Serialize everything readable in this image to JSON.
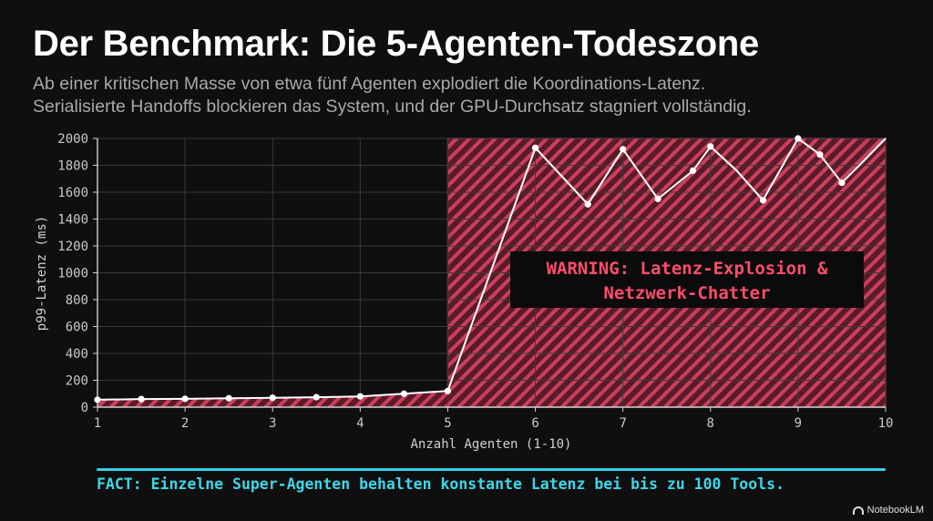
{
  "header": {
    "title": "Der Benchmark: Die 5-Agenten-Todeszone",
    "subtitle_line1": "Ab einer kritischen Masse von etwa fünf Agenten explodiert die Koordinations-Latenz.",
    "subtitle_line2": "Serialisierte Handoffs blockieren das System, und der GPU-Durchsatz stagniert vollständig."
  },
  "chart_data": {
    "type": "line",
    "xlabel": "Anzahl Agenten (1-10)",
    "ylabel": "p99-Latenz (ms)",
    "xlim": [
      1,
      10
    ],
    "ylim": [
      0,
      2000
    ],
    "x_ticks": [
      1,
      2,
      3,
      4,
      5,
      6,
      7,
      8,
      9,
      10
    ],
    "y_ticks": [
      0,
      200,
      400,
      600,
      800,
      1000,
      1200,
      1400,
      1600,
      1800,
      2000
    ],
    "grid": true,
    "series": [
      {
        "name": "p99-Latenz",
        "x": [
          1,
          1.5,
          2,
          2.5,
          3,
          3.5,
          4,
          4.5,
          5,
          6,
          6.6,
          7,
          7.4,
          7.8,
          8,
          8.3,
          8.6,
          9,
          9.25,
          9.5,
          9.7,
          10
        ],
        "y": [
          55,
          60,
          62,
          66,
          70,
          74,
          80,
          100,
          120,
          1930,
          1510,
          1920,
          1550,
          1760,
          1940,
          1760,
          1540,
          2000,
          1880,
          1670,
          1800,
          2000
        ],
        "markers": [
          true,
          true,
          true,
          true,
          true,
          true,
          true,
          true,
          true,
          true,
          true,
          true,
          true,
          true,
          true,
          false,
          true,
          true,
          true,
          true,
          false,
          false
        ]
      }
    ],
    "danger_zone": {
      "x_start": 5,
      "x_end": 10
    },
    "warning_line1": "WARNING: Latenz-Explosion &",
    "warning_line2": "Netzwerk-Chatter"
  },
  "footer": {
    "fact": "FACT: Einzelne Super-Agenten behalten konstante Latenz bei bis zu 100 Tools.",
    "brand": "NotebookLM"
  },
  "colors": {
    "background": "#0f0f0f",
    "danger_fill": "#5a1a2a",
    "danger_stripe": "#c8405a",
    "danger_border": "#ff4d6d",
    "warning_text": "#ff4d6d",
    "line": "#ffffff",
    "fact": "#3fd6e8"
  }
}
